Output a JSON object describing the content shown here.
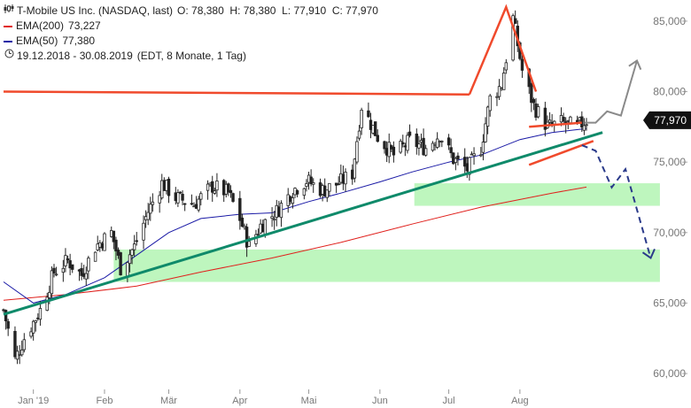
{
  "header": {
    "title": "T-Mobile US Inc. (NASDAQ, last)",
    "ohlc": "O: 78,380  H: 78,380  L: 77,910  C: 77,970",
    "ema200_label": "EMA(200)",
    "ema200_value": "73,227",
    "ema50_label": "EMA(50)",
    "ema50_value": "77,380",
    "period": "19.12.2018 - 30.08.2019",
    "period_info": "(EDT, 8 Monate, 1 Tag)"
  },
  "colors": {
    "candle": "#222222",
    "ema200": "#e0201c",
    "ema50": "#1a1aa6",
    "trend": "#0f8a6a",
    "annotation_red": "#f04a2c",
    "arrow_gray": "#8a8a8a",
    "arrow_navy": "#2a3a8a",
    "zone_green": "#b7f5b7"
  },
  "chart_data": {
    "type": "candlestick",
    "title": "T-Mobile US Inc. (NASDAQ, last)",
    "x_range": [
      "2018-12-19",
      "2019-08-30"
    ],
    "ylim": [
      59.0,
      86.5
    ],
    "y_ticks": [
      60,
      65,
      70,
      75,
      80,
      85
    ],
    "y_tick_labels": [
      "60,000",
      "65,000",
      "70,000",
      "75,000",
      "80,000",
      "85,000"
    ],
    "x_ticks": [
      {
        "date": "2019-01-01",
        "label": "Jan '19"
      },
      {
        "date": "2019-02-01",
        "label": "Feb"
      },
      {
        "date": "2019-03-01",
        "label": "Mär"
      },
      {
        "date": "2019-04-01",
        "label": "Apr"
      },
      {
        "date": "2019-05-01",
        "label": "Mai"
      },
      {
        "date": "2019-06-01",
        "label": "Jun"
      },
      {
        "date": "2019-07-01",
        "label": "Jul"
      },
      {
        "date": "2019-08-01",
        "label": "Aug"
      }
    ],
    "last_value_label": "77,970",
    "last_value": 77.97,
    "close_path": [
      [
        "2018-12-19",
        64.5
      ],
      [
        "2018-12-24",
        61.0
      ],
      [
        "2018-12-28",
        62.5
      ],
      [
        "2019-01-04",
        64.5
      ],
      [
        "2019-01-10",
        67.2
      ],
      [
        "2019-01-16",
        68.0
      ],
      [
        "2019-01-22",
        67.0
      ],
      [
        "2019-01-28",
        69.0
      ],
      [
        "2019-02-04",
        70.0
      ],
      [
        "2019-02-08",
        67.5
      ],
      [
        "2019-02-14",
        69.0
      ],
      [
        "2019-02-20",
        71.5
      ],
      [
        "2019-02-26",
        73.5
      ],
      [
        "2019-03-04",
        72.5
      ],
      [
        "2019-03-12",
        72.0
      ],
      [
        "2019-03-20",
        73.3
      ],
      [
        "2019-03-27",
        72.8
      ],
      [
        "2019-04-01",
        71.0
      ],
      [
        "2019-04-05",
        69.0
      ],
      [
        "2019-04-10",
        70.5
      ],
      [
        "2019-04-17",
        71.5
      ],
      [
        "2019-04-24",
        73.0
      ],
      [
        "2019-04-30",
        73.7
      ],
      [
        "2019-05-07",
        73.0
      ],
      [
        "2019-05-14",
        73.5
      ],
      [
        "2019-05-20",
        74.2
      ],
      [
        "2019-05-24",
        79.0
      ],
      [
        "2019-05-31",
        76.8
      ],
      [
        "2019-06-07",
        75.5
      ],
      [
        "2019-06-14",
        76.5
      ],
      [
        "2019-06-21",
        76.0
      ],
      [
        "2019-06-27",
        77.0
      ],
      [
        "2019-07-03",
        75.2
      ],
      [
        "2019-07-09",
        74.5
      ],
      [
        "2019-07-15",
        76.0
      ],
      [
        "2019-07-19",
        79.5
      ],
      [
        "2019-07-24",
        80.5
      ],
      [
        "2019-07-29",
        85.2
      ],
      [
        "2019-08-02",
        81.5
      ],
      [
        "2019-08-07",
        79.0
      ],
      [
        "2019-08-13",
        77.5
      ],
      [
        "2019-08-19",
        77.8
      ],
      [
        "2019-08-26",
        77.5
      ],
      [
        "2019-08-30",
        77.97
      ]
    ],
    "ema50_path": [
      [
        "2018-12-19",
        66.5
      ],
      [
        "2019-01-01",
        65.0
      ],
      [
        "2019-01-15",
        65.6
      ],
      [
        "2019-02-01",
        66.8
      ],
      [
        "2019-02-15",
        68.4
      ],
      [
        "2019-03-01",
        70.0
      ],
      [
        "2019-03-15",
        71.0
      ],
      [
        "2019-04-01",
        71.3
      ],
      [
        "2019-04-15",
        71.4
      ],
      [
        "2019-05-01",
        72.2
      ],
      [
        "2019-05-15",
        72.8
      ],
      [
        "2019-06-01",
        73.6
      ],
      [
        "2019-06-15",
        74.3
      ],
      [
        "2019-07-01",
        75.0
      ],
      [
        "2019-07-15",
        75.5
      ],
      [
        "2019-08-01",
        76.6
      ],
      [
        "2019-08-15",
        77.1
      ],
      [
        "2019-08-30",
        77.38
      ]
    ],
    "ema200_path": [
      [
        "2018-12-19",
        65.2
      ],
      [
        "2019-01-15",
        65.6
      ],
      [
        "2019-02-15",
        66.2
      ],
      [
        "2019-03-15",
        67.2
      ],
      [
        "2019-04-15",
        68.2
      ],
      [
        "2019-05-15",
        69.3
      ],
      [
        "2019-06-15",
        70.6
      ],
      [
        "2019-07-15",
        71.8
      ],
      [
        "2019-08-15",
        72.8
      ],
      [
        "2019-08-30",
        73.227
      ]
    ],
    "support_zones": [
      {
        "start": "2019-06-16",
        "end": "2019-10-01",
        "low": 71.9,
        "high": 73.5
      },
      {
        "start": "2019-02-05",
        "end": "2019-10-01",
        "low": 66.5,
        "high": 68.8
      }
    ],
    "trendline": [
      [
        "2018-12-19",
        64.2
      ],
      [
        "2019-09-06",
        77.1
      ]
    ],
    "resistance_line": [
      [
        "2018-12-19",
        80.0
      ],
      [
        "2019-07-10",
        79.8
      ]
    ],
    "peak_triangle": [
      [
        "2019-07-10",
        79.8
      ],
      [
        "2019-07-26",
        86.0
      ],
      [
        "2019-08-08",
        80.0
      ]
    ],
    "triangle_upper": [
      [
        "2019-08-05",
        77.5
      ],
      [
        "2019-08-28",
        77.8
      ]
    ],
    "triangle_lower": [
      [
        "2019-08-05",
        74.8
      ],
      [
        "2019-09-02",
        76.5
      ]
    ],
    "scenario_up": [
      [
        "2019-08-29",
        77.8
      ],
      [
        "2019-09-03",
        77.8
      ],
      [
        "2019-09-08",
        78.6
      ],
      [
        "2019-09-14",
        78.3
      ],
      [
        "2019-09-21",
        82.2
      ]
    ],
    "scenario_down": [
      [
        "2019-08-28",
        76.2
      ],
      [
        "2019-09-03",
        75.8
      ],
      [
        "2019-09-10",
        73.2
      ],
      [
        "2019-09-16",
        74.5
      ],
      [
        "2019-09-27",
        68.2
      ]
    ]
  }
}
